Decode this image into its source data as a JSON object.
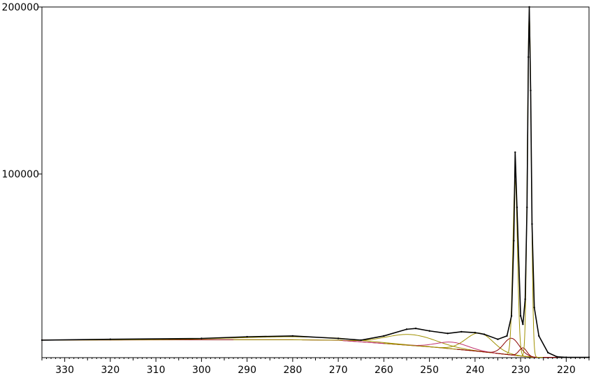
{
  "chart_data": {
    "type": "line",
    "title": "",
    "xlabel": "",
    "ylabel": "",
    "x_reversed": true,
    "xlim": [
      335,
      215
    ],
    "ylim": [
      -10000,
      200000
    ],
    "x_ticks": [
      330,
      320,
      310,
      300,
      290,
      280,
      270,
      260,
      250,
      240,
      230,
      220
    ],
    "x_tick_labels": [
      "330",
      "320",
      "310",
      "300",
      "290",
      "280",
      "270",
      "260",
      "250",
      "240",
      "230",
      "220"
    ],
    "y_ticks": [
      100000,
      200000
    ],
    "y_tick_labels": [
      "100000",
      "200000"
    ],
    "grid": false,
    "legend": "none",
    "baseline": {
      "name": "",
      "color": "#8b0000",
      "x": [
        335,
        320,
        300,
        280,
        270,
        260,
        250,
        240,
        235,
        230,
        227,
        225,
        222,
        220,
        215
      ],
      "values": [
        500,
        600,
        700,
        700,
        400,
        -1500,
        -3500,
        -6000,
        -7500,
        -9000,
        -9800,
        -9800,
        -9800,
        -9800,
        -9800
      ]
    },
    "components": [
      {
        "name": "",
        "color": "#a09000",
        "center": 280,
        "fwhm": 30,
        "height": 1800
      },
      {
        "name": "",
        "color": "#a09000",
        "center": 254,
        "fwhm": 13,
        "height": 6500
      },
      {
        "name": "",
        "color": "#c0306e",
        "center": 245,
        "fwhm": 8,
        "height": 4000
      },
      {
        "name": "",
        "color": "#a09000",
        "center": 239,
        "fwhm": 7,
        "height": 11000
      },
      {
        "name": "",
        "color": "#8b0000",
        "center": 232,
        "fwhm": 4,
        "height": 10000
      },
      {
        "name": "",
        "color": "#a09000",
        "center": 231.2,
        "fwhm": 1.2,
        "height": 105000
      },
      {
        "name": "",
        "color": "#8b0000",
        "center": 229.5,
        "fwhm": 2,
        "height": 5000
      },
      {
        "name": "",
        "color": "#a09000",
        "center": 228.1,
        "fwhm": 1.0,
        "height": 205000
      }
    ],
    "data_points": {
      "name": "",
      "color": "#000000",
      "x": [
        335,
        320,
        300,
        290,
        280,
        270,
        265,
        260,
        255,
        253,
        250,
        246,
        243,
        240,
        238,
        235,
        233,
        232,
        231.5,
        231.2,
        230.8,
        230,
        229.5,
        229,
        228.6,
        228.3,
        228.1,
        227.8,
        227.5,
        227,
        226,
        224,
        222,
        220,
        215
      ],
      "values": [
        500,
        1000,
        1500,
        2500,
        3000,
        1500,
        500,
        3000,
        7000,
        7500,
        6000,
        4500,
        5500,
        5000,
        4000,
        1000,
        3000,
        15000,
        60000,
        113000,
        80000,
        15000,
        10000,
        25000,
        80000,
        170000,
        200000,
        150000,
        70000,
        20000,
        3000,
        -7000,
        -9500,
        -9800,
        -9800
      ]
    }
  }
}
